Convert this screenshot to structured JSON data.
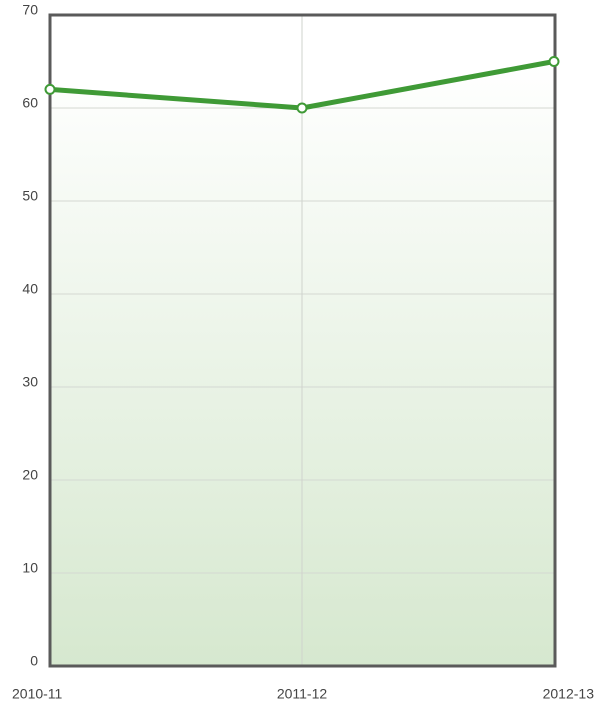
{
  "chart_data": {
    "type": "line",
    "categories": [
      "2010-11",
      "2011-12",
      "2012-13"
    ],
    "series": [
      {
        "name": null,
        "color": "#3f9a36",
        "values": [
          62,
          60,
          65
        ]
      }
    ],
    "ylim": [
      0,
      70
    ],
    "yticks": [
      0,
      10,
      20,
      30,
      40,
      50,
      60,
      70
    ],
    "grid": true
  }
}
